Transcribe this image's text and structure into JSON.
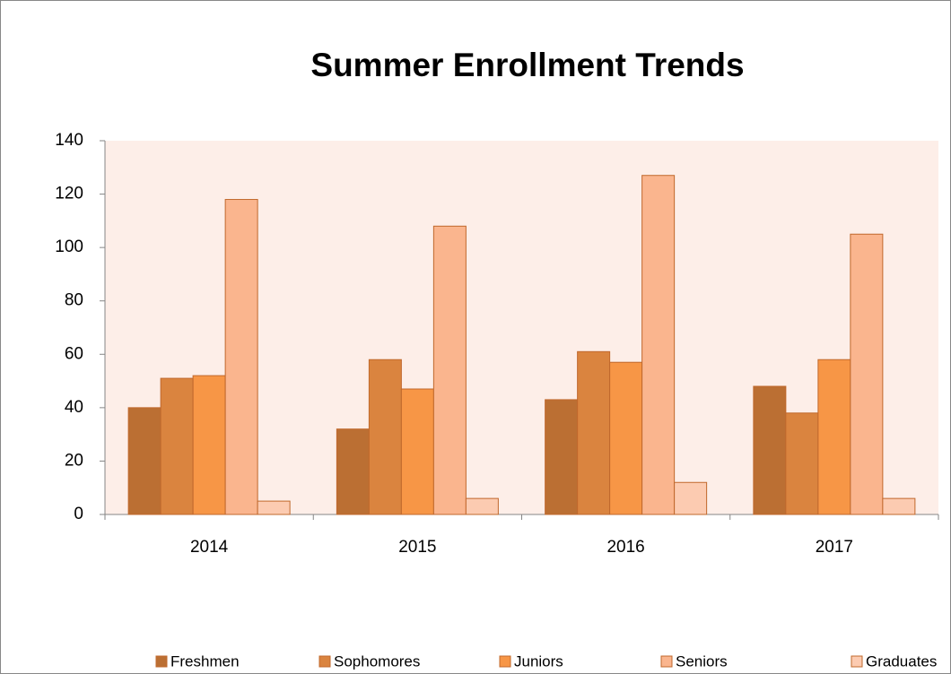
{
  "chart_data": {
    "type": "bar",
    "title": "Summer Enrollment Trends",
    "categories": [
      "2014",
      "2015",
      "2016",
      "2017"
    ],
    "series": [
      {
        "name": "Freshmen",
        "color": "#bb6f33",
        "values": [
          40,
          32,
          43,
          48
        ]
      },
      {
        "name": "Sophomores",
        "color": "#da843f",
        "values": [
          51,
          58,
          61,
          38
        ]
      },
      {
        "name": "Juniors",
        "color": "#f79646",
        "values": [
          52,
          47,
          57,
          58
        ]
      },
      {
        "name": "Seniors",
        "color": "#fab58e",
        "values": [
          118,
          108,
          127,
          105
        ]
      },
      {
        "name": "Graduates",
        "color": "#fccbb1",
        "values": [
          5,
          6,
          12,
          6
        ]
      }
    ],
    "ylim": [
      0,
      140
    ],
    "yticks": [
      0,
      20,
      40,
      60,
      80,
      100,
      120,
      140
    ]
  }
}
